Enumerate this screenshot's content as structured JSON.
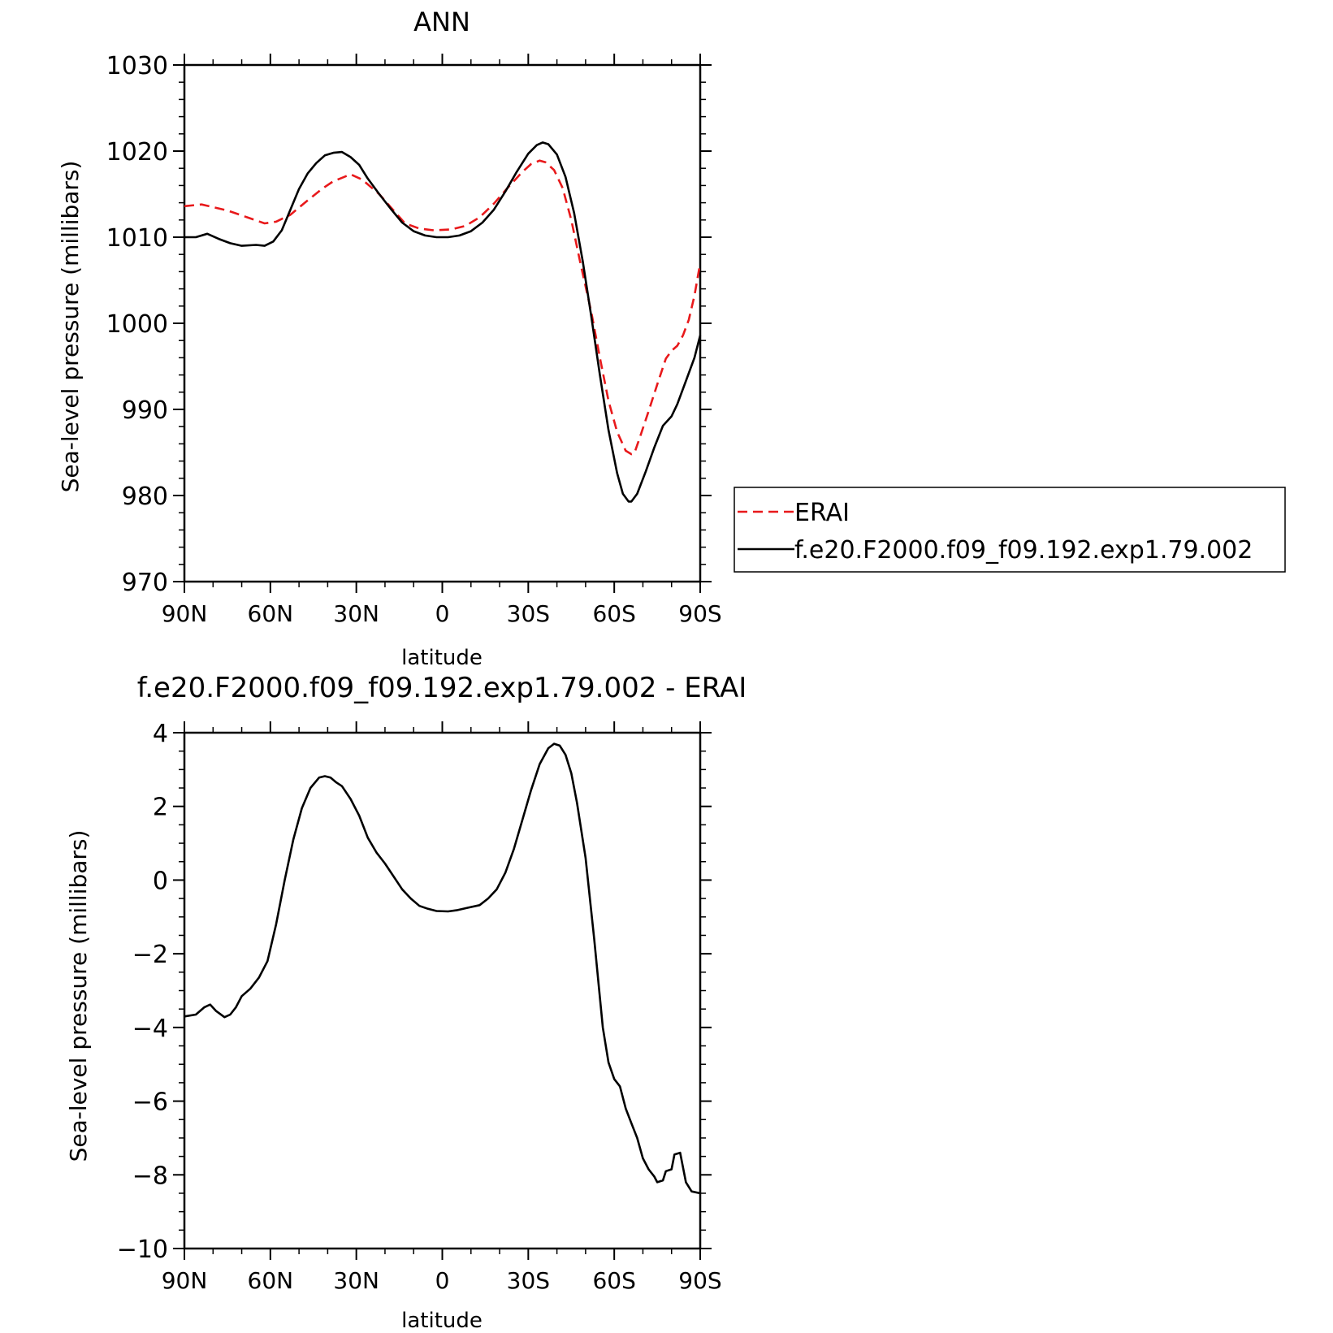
{
  "chart_data": [
    {
      "type": "line",
      "title": "ANN",
      "xlabel": "latitude",
      "ylabel": "Sea-level pressure (millibars)",
      "xlim": [
        90,
        -90
      ],
      "ylim": [
        970,
        1030
      ],
      "x_tick_values": [
        90,
        60,
        30,
        0,
        -30,
        -60,
        -90
      ],
      "x_tick_labels": [
        "90N",
        "60N",
        "30N",
        "0",
        "30S",
        "60S",
        "90S"
      ],
      "y_tick_values": [
        970,
        980,
        990,
        1000,
        1010,
        1020,
        1030
      ],
      "y_tick_labels": [
        "970",
        "980",
        "990",
        "1000",
        "1010",
        "1020",
        "1030"
      ],
      "legend_position": "right",
      "series": [
        {
          "name": "ERAI",
          "color": "#e8191b",
          "dash": true,
          "points": [
            [
              90,
              1013.6
            ],
            [
              84,
              1013.8
            ],
            [
              75,
              1013.1
            ],
            [
              68,
              1012.3
            ],
            [
              62,
              1011.6
            ],
            [
              58,
              1011.8
            ],
            [
              53,
              1012.6
            ],
            [
              48,
              1014.0
            ],
            [
              42,
              1015.6
            ],
            [
              38,
              1016.5
            ],
            [
              35,
              1016.9
            ],
            [
              32,
              1017.3
            ],
            [
              28,
              1016.7
            ],
            [
              22,
              1015.0
            ],
            [
              17,
              1013.1
            ],
            [
              13,
              1011.6
            ],
            [
              8,
              1011.0
            ],
            [
              3,
              1010.8
            ],
            [
              -3,
              1010.9
            ],
            [
              -8,
              1011.3
            ],
            [
              -13,
              1012.3
            ],
            [
              -18,
              1013.9
            ],
            [
              -23,
              1015.8
            ],
            [
              -28,
              1017.6
            ],
            [
              -31,
              1018.5
            ],
            [
              -34,
              1018.9
            ],
            [
              -36,
              1018.7
            ],
            [
              -39,
              1017.8
            ],
            [
              -42,
              1015.7
            ],
            [
              -45,
              1012.0
            ],
            [
              -48,
              1007.3
            ],
            [
              -52,
              1001.3
            ],
            [
              -55,
              996.0
            ],
            [
              -58,
              991.0
            ],
            [
              -61,
              987.4
            ],
            [
              -64,
              985.2
            ],
            [
              -66,
              984.8
            ],
            [
              -67,
              984.9
            ],
            [
              -69,
              986.8
            ],
            [
              -72,
              989.8
            ],
            [
              -75,
              992.9
            ],
            [
              -78,
              995.9
            ],
            [
              -80,
              996.8
            ],
            [
              -82,
              997.4
            ],
            [
              -84,
              998.6
            ],
            [
              -86,
              1000.4
            ],
            [
              -88,
              1003.2
            ],
            [
              -90,
              1007.0
            ]
          ]
        },
        {
          "name": "f.e20.F2000.f09_f09.192.exp1.79.002",
          "color": "#000000",
          "dash": false,
          "points": [
            [
              90,
              1010.0
            ],
            [
              86,
              1010.0
            ],
            [
              82,
              1010.4
            ],
            [
              78,
              1009.8
            ],
            [
              74,
              1009.3
            ],
            [
              70,
              1009.0
            ],
            [
              65,
              1009.1
            ],
            [
              62,
              1009.0
            ],
            [
              59,
              1009.5
            ],
            [
              56,
              1010.8
            ],
            [
              53,
              1013.2
            ],
            [
              50,
              1015.6
            ],
            [
              47,
              1017.4
            ],
            [
              44,
              1018.6
            ],
            [
              41,
              1019.5
            ],
            [
              38,
              1019.8
            ],
            [
              35,
              1019.9
            ],
            [
              32,
              1019.3
            ],
            [
              29,
              1018.4
            ],
            [
              26,
              1016.8
            ],
            [
              22,
              1015.0
            ],
            [
              18,
              1013.3
            ],
            [
              14,
              1011.7
            ],
            [
              10,
              1010.7
            ],
            [
              6,
              1010.2
            ],
            [
              2,
              1010.0
            ],
            [
              -2,
              1010.0
            ],
            [
              -6,
              1010.2
            ],
            [
              -10,
              1010.7
            ],
            [
              -14,
              1011.7
            ],
            [
              -18,
              1013.2
            ],
            [
              -22,
              1015.3
            ],
            [
              -26,
              1017.6
            ],
            [
              -30,
              1019.7
            ],
            [
              -33,
              1020.7
            ],
            [
              -35,
              1021.0
            ],
            [
              -37,
              1020.8
            ],
            [
              -40,
              1019.6
            ],
            [
              -43,
              1017.0
            ],
            [
              -46,
              1012.8
            ],
            [
              -49,
              1007.2
            ],
            [
              -52,
              1000.8
            ],
            [
              -55,
              994.0
            ],
            [
              -58,
              987.6
            ],
            [
              -61,
              982.6
            ],
            [
              -63,
              980.2
            ],
            [
              -65,
              979.3
            ],
            [
              -66,
              979.3
            ],
            [
              -68,
              980.2
            ],
            [
              -71,
              982.8
            ],
            [
              -74,
              985.6
            ],
            [
              -77,
              988.1
            ],
            [
              -80,
              989.2
            ],
            [
              -82,
              990.6
            ],
            [
              -85,
              993.3
            ],
            [
              -88,
              996.0
            ],
            [
              -90,
              998.6
            ]
          ]
        }
      ]
    },
    {
      "type": "line",
      "title": "f.e20.F2000.f09_f09.192.exp1.79.002 - ERAI",
      "xlabel": "latitude",
      "ylabel": "Sea-level pressure (millibars)",
      "xlim": [
        90,
        -90
      ],
      "ylim": [
        -10,
        4
      ],
      "x_tick_values": [
        90,
        60,
        30,
        0,
        -30,
        -60,
        -90
      ],
      "x_tick_labels": [
        "90N",
        "60N",
        "30N",
        "0",
        "30S",
        "60S",
        "90S"
      ],
      "y_tick_values": [
        -10,
        -8,
        -6,
        -4,
        -2,
        0,
        2,
        4
      ],
      "y_tick_labels": [
        "−10",
        "−8",
        "−6",
        "−4",
        "−2",
        "0",
        "2",
        "4"
      ],
      "series": [
        {
          "color": "#000000",
          "dash": false,
          "points": [
            [
              90,
              -3.7
            ],
            [
              86,
              -3.65
            ],
            [
              83,
              -3.45
            ],
            [
              81,
              -3.38
            ],
            [
              79,
              -3.55
            ],
            [
              76,
              -3.72
            ],
            [
              74,
              -3.65
            ],
            [
              72,
              -3.45
            ],
            [
              70,
              -3.15
            ],
            [
              67,
              -2.95
            ],
            [
              64,
              -2.65
            ],
            [
              61,
              -2.2
            ],
            [
              58,
              -1.2
            ],
            [
              55,
              0.0
            ],
            [
              52,
              1.1
            ],
            [
              49,
              1.95
            ],
            [
              46,
              2.5
            ],
            [
              43,
              2.78
            ],
            [
              41,
              2.82
            ],
            [
              39,
              2.78
            ],
            [
              37,
              2.65
            ],
            [
              35,
              2.55
            ],
            [
              32,
              2.2
            ],
            [
              29,
              1.75
            ],
            [
              26,
              1.15
            ],
            [
              23,
              0.75
            ],
            [
              20,
              0.45
            ],
            [
              17,
              0.1
            ],
            [
              14,
              -0.25
            ],
            [
              11,
              -0.5
            ],
            [
              8,
              -0.7
            ],
            [
              5,
              -0.78
            ],
            [
              2,
              -0.84
            ],
            [
              -2,
              -0.85
            ],
            [
              -5,
              -0.82
            ],
            [
              -9,
              -0.75
            ],
            [
              -13,
              -0.68
            ],
            [
              -16,
              -0.5
            ],
            [
              -19,
              -0.25
            ],
            [
              -22,
              0.2
            ],
            [
              -25,
              0.85
            ],
            [
              -28,
              1.65
            ],
            [
              -31,
              2.45
            ],
            [
              -34,
              3.15
            ],
            [
              -37,
              3.58
            ],
            [
              -39,
              3.7
            ],
            [
              -41,
              3.65
            ],
            [
              -43,
              3.4
            ],
            [
              -45,
              2.9
            ],
            [
              -47,
              2.1
            ],
            [
              -50,
              0.6
            ],
            [
              -53,
              -1.6
            ],
            [
              -56,
              -4.0
            ],
            [
              -58,
              -4.95
            ],
            [
              -60,
              -5.4
            ],
            [
              -62,
              -5.6
            ],
            [
              -64,
              -6.2
            ],
            [
              -66,
              -6.6
            ],
            [
              -68,
              -7.0
            ],
            [
              -70,
              -7.55
            ],
            [
              -72,
              -7.85
            ],
            [
              -74,
              -8.05
            ],
            [
              -75,
              -8.2
            ],
            [
              -77,
              -8.15
            ],
            [
              -78,
              -7.9
            ],
            [
              -80,
              -7.85
            ],
            [
              -81,
              -7.45
            ],
            [
              -83,
              -7.4
            ],
            [
              -85,
              -8.2
            ],
            [
              -87,
              -8.45
            ],
            [
              -90,
              -8.5
            ]
          ]
        }
      ]
    }
  ]
}
